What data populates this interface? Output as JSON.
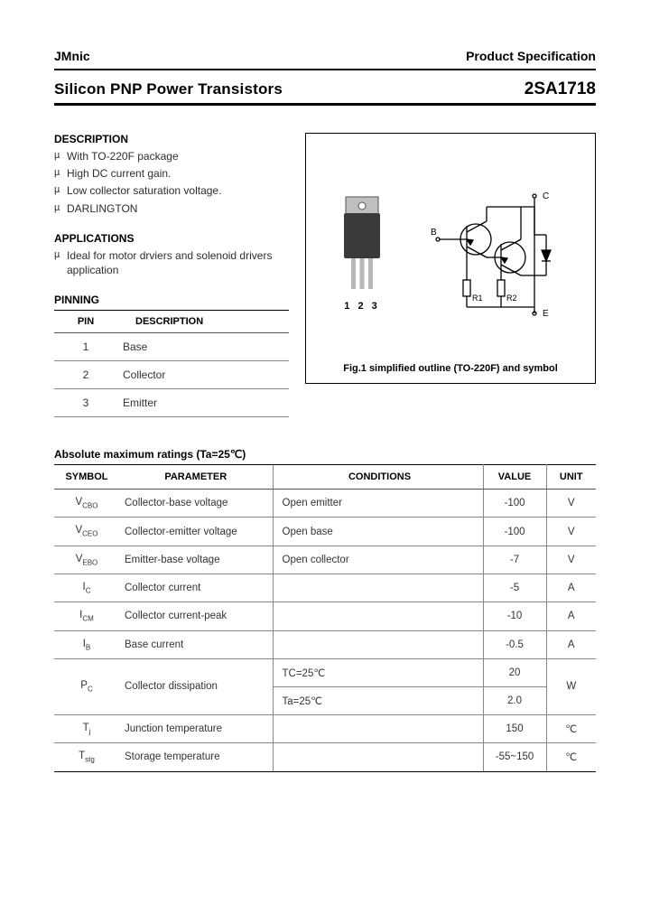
{
  "header": {
    "brand": "JMnic",
    "spec": "Product Specification",
    "title_left": "Silicon PNP Power Transistors",
    "title_right": "2SA1718"
  },
  "description": {
    "heading": "DESCRIPTION",
    "items": [
      "With TO-220F package",
      "High DC current gain.",
      "Low collector saturation voltage.",
      "DARLINGTON"
    ]
  },
  "applications": {
    "heading": "APPLICATIONS",
    "items": [
      "Ideal for motor drviers and solenoid drivers application"
    ]
  },
  "pinning": {
    "heading": "PINNING",
    "col_pin": "PIN",
    "col_desc": "DESCRIPTION",
    "rows": [
      {
        "pin": "1",
        "desc": "Base"
      },
      {
        "pin": "2",
        "desc": "Collector"
      },
      {
        "pin": "3",
        "desc": "Emitter"
      }
    ]
  },
  "figure": {
    "pin_labels": "1 2 3",
    "caption": "Fig.1 simplified outline (TO-220F) and symbol",
    "labels": {
      "b": "B",
      "c": "C",
      "e": "E",
      "r1": "R1",
      "r2": "R2"
    },
    "colors": {
      "pkg_body": "#3a3a3a",
      "pkg_tab": "#bfbfbf",
      "pkg_pins": "#b8b8b8",
      "stroke": "#000000"
    }
  },
  "ratings": {
    "heading": "Absolute maximum ratings (Ta=25℃)",
    "cols": {
      "symbol": "SYMBOL",
      "parameter": "PARAMETER",
      "conditions": "CONDITIONS",
      "value": "VALUE",
      "unit": "UNIT"
    },
    "rows": [
      {
        "sym": "V",
        "sub": "CBO",
        "par": "Collector-base voltage",
        "cond": "Open emitter",
        "val": "-100",
        "unit": "V"
      },
      {
        "sym": "V",
        "sub": "CEO",
        "par": "Collector-emitter voltage",
        "cond": "Open base",
        "val": "-100",
        "unit": "V"
      },
      {
        "sym": "V",
        "sub": "EBO",
        "par": "Emitter-base voltage",
        "cond": "Open collector",
        "val": "-7",
        "unit": "V"
      },
      {
        "sym": "I",
        "sub": "C",
        "par": "Collector current",
        "cond": "",
        "val": "-5",
        "unit": "A"
      },
      {
        "sym": "I",
        "sub": "CM",
        "par": "Collector current-peak",
        "cond": "",
        "val": "-10",
        "unit": "A"
      },
      {
        "sym": "I",
        "sub": "B",
        "par": "Base current",
        "cond": "",
        "val": "-0.5",
        "unit": "A"
      }
    ],
    "pc": {
      "sym": "P",
      "sub": "C",
      "par": "Collector dissipation",
      "cond1": "TC=25℃",
      "val1": "20",
      "cond2": "Ta=25℃",
      "val2": "2.0",
      "unit": "W"
    },
    "tail": [
      {
        "sym": "T",
        "sub": "j",
        "par": "Junction temperature",
        "cond": "",
        "val": "150",
        "unit": "℃"
      },
      {
        "sym": "T",
        "sub": "stg",
        "par": "Storage temperature",
        "cond": "",
        "val": "-55~150",
        "unit": "℃"
      }
    ]
  }
}
